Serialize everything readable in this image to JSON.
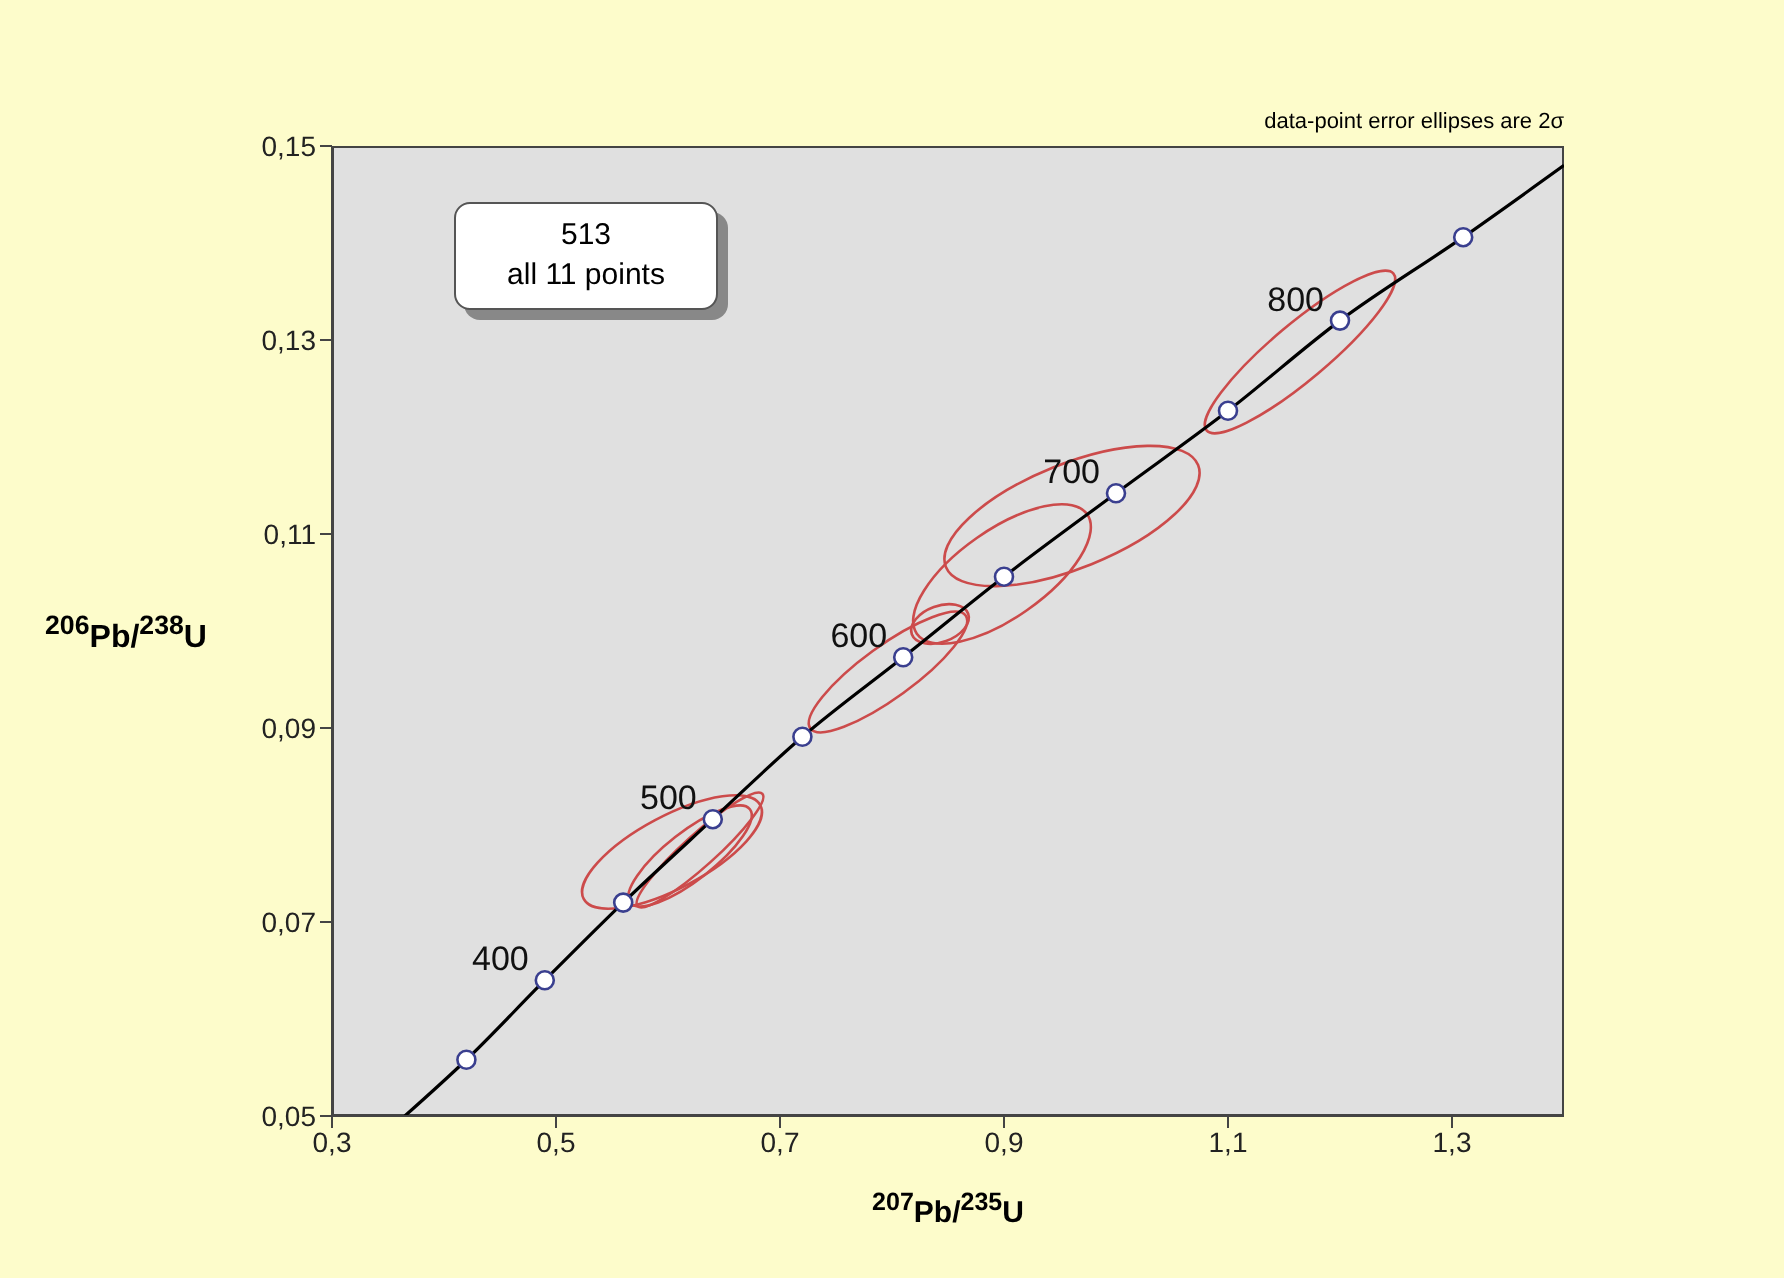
{
  "chart_data": {
    "type": "line",
    "xlabel": "$^{207}$Pb/$^{235}$U",
    "ylabel": "$^{206}$Pb/$^{238}$U",
    "xlim": [
      0.3,
      1.4
    ],
    "xticks": [
      {
        "value": 0.3,
        "label": "0,3"
      },
      {
        "value": 0.5,
        "label": "0,5"
      },
      {
        "value": 0.7,
        "label": "0,7"
      },
      {
        "value": 0.9,
        "label": "0,9"
      },
      {
        "value": 1.1,
        "label": "1,1"
      },
      {
        "value": 1.3,
        "label": "1,3"
      }
    ],
    "ylim": [
      0.05,
      0.15
    ],
    "yticks": [
      {
        "value": 0.05,
        "label": "0,05"
      },
      {
        "value": 0.07,
        "label": "0,07"
      },
      {
        "value": 0.09,
        "label": "0,09"
      },
      {
        "value": 0.11,
        "label": "0,11"
      },
      {
        "value": 0.13,
        "label": "0,13"
      },
      {
        "value": 0.15,
        "label": "0,15"
      }
    ],
    "annotations": [
      "513",
      "all 11 points",
      "data-point error ellipses are 2σ",
      {
        "text": "400",
        "x": 0.49,
        "y": 0.064
      },
      {
        "text": "500",
        "x": 0.64,
        "y": 0.0806
      },
      {
        "text": "600",
        "x": 0.81,
        "y": 0.0973
      },
      {
        "text": "700",
        "x": 1.0,
        "y": 0.1142
      },
      {
        "text": "800",
        "x": 1.2,
        "y": 0.132
      }
    ],
    "series": [
      {
        "color": "#000000",
        "x": [
          0.365,
          0.42,
          0.49,
          0.56,
          0.64,
          0.72,
          0.81,
          0.9,
          1.0,
          1.1,
          1.2,
          1.31,
          1.4
        ],
        "values": [
          0.05,
          0.0558,
          0.064,
          0.072,
          0.0806,
          0.0891,
          0.0973,
          0.1056,
          0.1142,
          0.1227,
          0.132,
          0.1406,
          0.148
        ]
      },
      {
        "type": "scatter",
        "color": "#3a3f8f",
        "marker": "circle",
        "x": [
          0.42,
          0.49,
          0.56,
          0.64,
          0.72,
          0.81,
          0.9,
          1.0,
          1.1,
          1.2,
          1.31
        ],
        "values": [
          0.0558,
          0.064,
          0.072,
          0.0806,
          0.0891,
          0.0973,
          0.1056,
          0.1142,
          0.1227,
          0.132,
          0.1406
        ]
      }
    ]
  }
}
